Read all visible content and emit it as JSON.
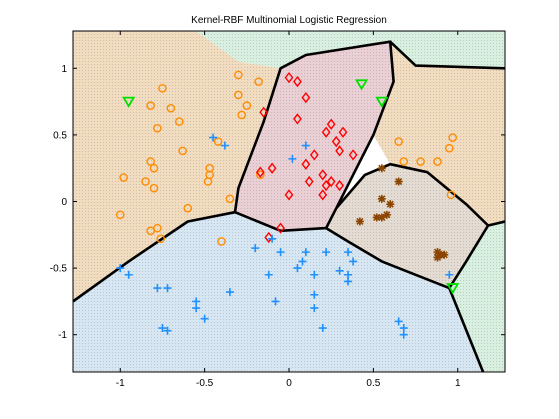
{
  "chart_data": {
    "type": "scatter",
    "title": "Kernel-RBF Multinomial Logistic Regression",
    "xlabel": "",
    "ylabel": "",
    "xlim": [
      -1.28,
      1.28
    ],
    "ylim": [
      -1.28,
      1.28
    ],
    "x_ticks": [
      -1,
      -0.5,
      0,
      0.5,
      1
    ],
    "x_tick_labels": [
      "-1",
      "-0.5",
      "0",
      "0.5",
      "1"
    ],
    "y_ticks": [
      -1,
      -0.5,
      0,
      0.5,
      1
    ],
    "y_tick_labels": [
      "-1",
      "-0.5",
      "0",
      "0.5",
      "1"
    ],
    "grid": false,
    "region_colors": {
      "orange": "#f2dcc0",
      "red": "#ead0d4",
      "brown": "#e4dcd2",
      "blue": "#d6e6f2",
      "green": "#d8f0e0"
    },
    "regions": [
      {
        "class": "orange",
        "polygon": [
          [
            -1.28,
            1.28
          ],
          [
            -0.55,
            1.28
          ],
          [
            -0.3,
            1.05
          ],
          [
            -0.05,
            1.0
          ],
          [
            -0.15,
            0.6
          ],
          [
            -0.3,
            0.1
          ],
          [
            -0.32,
            -0.08
          ],
          [
            -0.6,
            -0.15
          ],
          [
            -0.95,
            -0.45
          ],
          [
            -1.28,
            -0.75
          ]
        ]
      },
      {
        "class": "green",
        "polygon": [
          [
            -0.55,
            1.28
          ],
          [
            1.28,
            1.28
          ],
          [
            1.28,
            1.0
          ],
          [
            0.75,
            1.02
          ],
          [
            0.6,
            1.2
          ],
          [
            0.1,
            1.1
          ],
          [
            -0.05,
            1.0
          ],
          [
            -0.3,
            1.05
          ]
        ]
      },
      {
        "class": "orange",
        "polygon": [
          [
            0.6,
            1.2
          ],
          [
            0.75,
            1.02
          ],
          [
            1.28,
            1.0
          ],
          [
            1.28,
            -0.15
          ],
          [
            1.18,
            -0.18
          ],
          [
            1.05,
            -0.02
          ],
          [
            0.82,
            0.22
          ],
          [
            0.6,
            0.28
          ],
          [
            0.5,
            0.5
          ],
          [
            0.62,
            0.9
          ]
        ]
      },
      {
        "class": "red",
        "polygon": [
          [
            -0.05,
            1.0
          ],
          [
            0.1,
            1.1
          ],
          [
            0.6,
            1.2
          ],
          [
            0.62,
            0.9
          ],
          [
            0.5,
            0.5
          ],
          [
            0.4,
            0.25
          ],
          [
            0.28,
            -0.05
          ],
          [
            0.22,
            -0.2
          ],
          [
            -0.05,
            -0.22
          ],
          [
            -0.32,
            -0.08
          ],
          [
            -0.3,
            0.1
          ],
          [
            -0.15,
            0.6
          ]
        ]
      },
      {
        "class": "brown",
        "polygon": [
          [
            0.28,
            -0.05
          ],
          [
            0.45,
            0.2
          ],
          [
            0.6,
            0.28
          ],
          [
            0.82,
            0.22
          ],
          [
            1.05,
            -0.02
          ],
          [
            1.18,
            -0.18
          ],
          [
            1.05,
            -0.45
          ],
          [
            0.95,
            -0.65
          ],
          [
            0.85,
            -0.6
          ],
          [
            0.55,
            -0.45
          ],
          [
            0.35,
            -0.3
          ],
          [
            0.22,
            -0.2
          ]
        ]
      },
      {
        "class": "blue",
        "polygon": [
          [
            -1.28,
            -0.75
          ],
          [
            -0.95,
            -0.45
          ],
          [
            -0.6,
            -0.15
          ],
          [
            -0.32,
            -0.08
          ],
          [
            -0.05,
            -0.22
          ],
          [
            0.22,
            -0.2
          ],
          [
            0.35,
            -0.3
          ],
          [
            0.55,
            -0.45
          ],
          [
            0.85,
            -0.6
          ],
          [
            0.95,
            -0.65
          ],
          [
            1.15,
            -1.28
          ],
          [
            -1.28,
            -1.28
          ]
        ]
      },
      {
        "class": "green",
        "polygon": [
          [
            1.28,
            -0.15
          ],
          [
            1.28,
            -1.28
          ],
          [
            1.15,
            -1.28
          ],
          [
            0.95,
            -0.65
          ],
          [
            1.05,
            -0.45
          ],
          [
            1.18,
            -0.18
          ]
        ]
      }
    ],
    "boundaries": [
      [
        [
          -1.28,
          -0.75
        ],
        [
          -0.95,
          -0.45
        ],
        [
          -0.6,
          -0.15
        ],
        [
          -0.32,
          -0.08
        ]
      ],
      [
        [
          -0.32,
          -0.08
        ],
        [
          -0.3,
          0.1
        ],
        [
          -0.15,
          0.6
        ],
        [
          -0.05,
          1.0
        ],
        [
          0.1,
          1.1
        ],
        [
          0.6,
          1.2
        ],
        [
          0.62,
          0.9
        ],
        [
          0.5,
          0.5
        ],
        [
          0.4,
          0.25
        ],
        [
          0.28,
          -0.05
        ]
      ],
      [
        [
          0.6,
          1.2
        ],
        [
          0.75,
          1.02
        ],
        [
          1.28,
          1.0
        ]
      ],
      [
        [
          -0.32,
          -0.08
        ],
        [
          -0.05,
          -0.22
        ],
        [
          0.22,
          -0.2
        ],
        [
          0.28,
          -0.05
        ]
      ],
      [
        [
          0.28,
          -0.05
        ],
        [
          0.45,
          0.2
        ],
        [
          0.6,
          0.28
        ],
        [
          0.82,
          0.22
        ],
        [
          1.05,
          -0.02
        ],
        [
          1.18,
          -0.18
        ],
        [
          1.05,
          -0.45
        ],
        [
          0.95,
          -0.65
        ]
      ],
      [
        [
          0.22,
          -0.2
        ],
        [
          0.35,
          -0.3
        ],
        [
          0.55,
          -0.45
        ],
        [
          0.85,
          -0.6
        ],
        [
          0.95,
          -0.65
        ]
      ],
      [
        [
          0.95,
          -0.65
        ],
        [
          1.15,
          -1.28
        ]
      ],
      [
        [
          1.18,
          -0.18
        ],
        [
          1.28,
          -0.15
        ]
      ]
    ],
    "series": [
      {
        "marker": "circle",
        "color": "#ff8c00",
        "points": [
          [
            -0.75,
            0.85
          ],
          [
            -0.82,
            0.72
          ],
          [
            -0.7,
            0.7
          ],
          [
            -0.65,
            0.6
          ],
          [
            -0.78,
            0.55
          ],
          [
            -0.63,
            0.38
          ],
          [
            -0.82,
            0.3
          ],
          [
            -0.8,
            0.25
          ],
          [
            -0.98,
            0.18
          ],
          [
            -0.85,
            0.15
          ],
          [
            -0.8,
            0.1
          ],
          [
            -1.0,
            -0.1
          ],
          [
            -0.78,
            -0.2
          ],
          [
            -0.76,
            -0.28
          ],
          [
            -0.82,
            -0.22
          ],
          [
            -0.6,
            -0.05
          ],
          [
            -0.47,
            0.25
          ],
          [
            -0.47,
            0.2
          ],
          [
            -0.48,
            0.15
          ],
          [
            -0.42,
            0.45
          ],
          [
            -0.4,
            -0.3
          ],
          [
            -0.35,
            0.02
          ],
          [
            -0.3,
            0.95
          ],
          [
            -0.3,
            0.8
          ],
          [
            -0.28,
            0.65
          ],
          [
            -0.25,
            0.72
          ],
          [
            -0.18,
            0.9
          ],
          [
            -0.17,
            0.2
          ],
          [
            0.65,
            0.45
          ],
          [
            0.68,
            0.3
          ],
          [
            0.78,
            0.3
          ],
          [
            0.88,
            0.3
          ],
          [
            0.95,
            0.4
          ],
          [
            0.97,
            0.48
          ],
          [
            0.96,
            0.05
          ]
        ]
      },
      {
        "marker": "diamond",
        "color": "#ff0000",
        "points": [
          [
            0.0,
            0.93
          ],
          [
            0.05,
            0.9
          ],
          [
            0.1,
            0.78
          ],
          [
            -0.15,
            0.67
          ],
          [
            0.05,
            0.62
          ],
          [
            0.25,
            0.58
          ],
          [
            0.22,
            0.52
          ],
          [
            0.32,
            0.52
          ],
          [
            0.28,
            0.45
          ],
          [
            0.3,
            0.38
          ],
          [
            0.38,
            0.35
          ],
          [
            0.1,
            0.28
          ],
          [
            0.15,
            0.35
          ],
          [
            0.2,
            0.2
          ],
          [
            0.12,
            0.15
          ],
          [
            0.25,
            0.15
          ],
          [
            0.3,
            0.12
          ],
          [
            0.22,
            0.12
          ],
          [
            0.0,
            0.05
          ],
          [
            0.2,
            0.05
          ],
          [
            -0.1,
            0.25
          ],
          [
            -0.05,
            -0.2
          ],
          [
            -0.12,
            -0.27
          ],
          [
            -0.17,
            0.22
          ]
        ]
      },
      {
        "marker": "star",
        "color": "#8b4500",
        "points": [
          [
            0.55,
            0.25
          ],
          [
            0.65,
            0.15
          ],
          [
            0.55,
            0.02
          ],
          [
            0.6,
            -0.02
          ],
          [
            0.42,
            -0.15
          ],
          [
            0.52,
            -0.12
          ],
          [
            0.55,
            -0.12
          ],
          [
            0.58,
            -0.1
          ],
          [
            0.88,
            -0.38
          ],
          [
            0.9,
            -0.4
          ],
          [
            0.92,
            -0.4
          ],
          [
            0.88,
            -0.42
          ]
        ]
      },
      {
        "marker": "plus",
        "color": "#1e90ff",
        "points": [
          [
            -0.45,
            0.48
          ],
          [
            -0.38,
            0.42
          ],
          [
            0.1,
            0.42
          ],
          [
            0.02,
            0.32
          ],
          [
            -0.2,
            -0.35
          ],
          [
            -0.1,
            -0.28
          ],
          [
            -0.05,
            -0.38
          ],
          [
            0.1,
            -0.38
          ],
          [
            0.22,
            -0.38
          ],
          [
            0.35,
            -0.38
          ],
          [
            0.38,
            -0.45
          ],
          [
            -1.0,
            -0.5
          ],
          [
            -0.95,
            -0.55
          ],
          [
            -0.78,
            -0.65
          ],
          [
            -0.72,
            -0.65
          ],
          [
            -0.55,
            -0.75
          ],
          [
            -0.55,
            -0.8
          ],
          [
            -0.35,
            -0.68
          ],
          [
            -0.12,
            -0.55
          ],
          [
            0.08,
            -0.45
          ],
          [
            0.05,
            -0.5
          ],
          [
            0.15,
            -0.55
          ],
          [
            0.3,
            -0.52
          ],
          [
            0.35,
            -0.55
          ],
          [
            0.35,
            -0.6
          ],
          [
            0.15,
            -0.7
          ],
          [
            0.15,
            -0.8
          ],
          [
            -0.08,
            -0.75
          ],
          [
            -0.75,
            -0.95
          ],
          [
            -0.72,
            -0.97
          ],
          [
            -0.5,
            -0.88
          ],
          [
            0.2,
            -0.95
          ],
          [
            0.65,
            -0.9
          ],
          [
            0.68,
            -0.95
          ],
          [
            0.68,
            -1.0
          ],
          [
            0.95,
            -0.55
          ]
        ]
      },
      {
        "marker": "triangle",
        "color": "#00e000",
        "points": [
          [
            -0.95,
            0.75
          ],
          [
            0.43,
            0.88
          ],
          [
            0.55,
            0.75
          ],
          [
            0.97,
            -0.65
          ]
        ]
      }
    ]
  }
}
